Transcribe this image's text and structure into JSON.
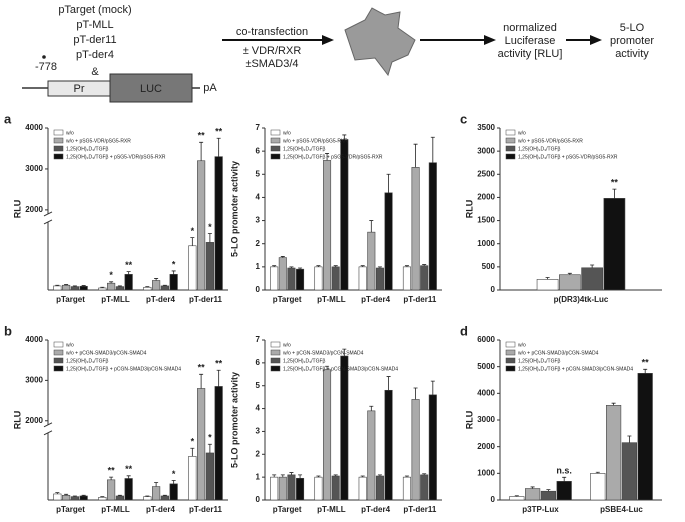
{
  "schematic": {
    "constructs": [
      "pTarget (mock)",
      "pT-MLL",
      "pT-der11",
      "pT-der4"
    ],
    "ampersand": "&",
    "position": "-778",
    "promoter": "Pr",
    "reporter": "LUC",
    "polya": "pA",
    "step1": [
      "co-transfection",
      "± VDR/RXR",
      "±SMAD3/4"
    ],
    "step2": [
      "normalized",
      "Luciferase",
      "activity [RLU]"
    ],
    "step3": [
      "5-LO",
      "promoter",
      "activity"
    ]
  },
  "chart_data": [
    {
      "type": "bar",
      "panel": "a",
      "ylabel": "RLU",
      "legend": "upper left",
      "categories": [
        "pTarget",
        "pT-MLL",
        "pT-der4",
        "pT-der11"
      ],
      "ylim": [
        0,
        4000
      ],
      "yticks": [
        2000,
        3000,
        4000
      ],
      "axis_break": [
        1000,
        1900
      ],
      "series": [
        {
          "name": "w/o",
          "color": "#ffffff",
          "values": [
            60,
            30,
            40,
            650
          ],
          "errors": [
            10,
            10,
            10,
            120
          ],
          "significance": [
            null,
            null,
            null,
            "*"
          ]
        },
        {
          "name": "w/o + pSG5-VDR/pSG5-RXR",
          "color": "#aaaaaa",
          "values": [
            70,
            100,
            140,
            3200
          ],
          "errors": [
            10,
            20,
            30,
            450
          ],
          "significance": [
            null,
            "*",
            null,
            "**"
          ]
        },
        {
          "name": "1,25(OH)₂D₃/TGFβ",
          "color": "#555555",
          "values": [
            50,
            50,
            60,
            700
          ],
          "errors": [
            10,
            10,
            10,
            130
          ],
          "significance": [
            null,
            null,
            null,
            "*"
          ]
        },
        {
          "name": "1,25(OH)₂D₃/TGFβ + pSG5-VDR/pSG5-RXR",
          "color": "#111111",
          "values": [
            55,
            230,
            230,
            3300
          ],
          "errors": [
            10,
            40,
            50,
            450
          ],
          "significance": [
            null,
            "**",
            "*",
            "**"
          ]
        }
      ]
    },
    {
      "type": "bar",
      "ylabel": "5-LO promoter activity",
      "legend": "upper left",
      "categories": [
        "pTarget",
        "pT-MLL",
        "pT-der4",
        "pT-der11"
      ],
      "ylim": [
        0,
        7
      ],
      "yticks": [
        0,
        1,
        2,
        3,
        4,
        5,
        6,
        7
      ],
      "series": [
        {
          "name": "w/o",
          "color": "#ffffff",
          "values": [
            1,
            1,
            1,
            1
          ],
          "errors": [
            0.05,
            0.05,
            0.05,
            0.05
          ],
          "significance": [
            null,
            null,
            null,
            null
          ]
        },
        {
          "name": "w/o + pSG5-VDR/pSG5-RXR",
          "color": "#aaaaaa",
          "values": [
            1.4,
            5.6,
            2.5,
            5.3
          ],
          "errors": [
            0.05,
            0.3,
            0.5,
            1.0
          ],
          "significance": [
            null,
            null,
            null,
            null
          ]
        },
        {
          "name": "1,25(OH)₂D₃/TGFβ",
          "color": "#555555",
          "values": [
            0.95,
            1.0,
            0.95,
            1.05
          ],
          "errors": [
            0.05,
            0.05,
            0.05,
            0.05
          ],
          "significance": [
            null,
            null,
            null,
            null
          ]
        },
        {
          "name": "1,25(OH)₂D₃/TGFβ + pSG5-VDR/pSG5-RXR",
          "color": "#111111",
          "values": [
            0.9,
            6.5,
            4.2,
            5.5
          ],
          "errors": [
            0.05,
            0.2,
            0.8,
            1.1
          ],
          "significance": [
            null,
            null,
            null,
            null
          ]
        }
      ]
    },
    {
      "type": "bar",
      "panel": "c",
      "ylabel": "RLU",
      "legend": "upper left",
      "categories": [
        "p(DR3)4tk-Luc"
      ],
      "ylim": [
        0,
        3500
      ],
      "yticks": [
        0,
        500,
        1000,
        1500,
        2000,
        2500,
        3000,
        3500
      ],
      "series": [
        {
          "name": "w/o",
          "color": "#ffffff",
          "values": [
            230
          ],
          "errors": [
            40
          ],
          "significance": [
            null
          ]
        },
        {
          "name": "w/o + pSG5-VDR/pSG5-RXR",
          "color": "#aaaaaa",
          "values": [
            330
          ],
          "errors": [
            30
          ],
          "significance": [
            null
          ]
        },
        {
          "name": "1,25(OH)₂D₃/TGFβ",
          "color": "#555555",
          "values": [
            480
          ],
          "errors": [
            60
          ],
          "significance": [
            null
          ]
        },
        {
          "name": "1,25(OH)₂D₃/TGFβ + pSG5-VDR/pSG5-RXR",
          "color": "#111111",
          "values": [
            1980
          ],
          "errors": [
            200
          ],
          "significance": [
            "**"
          ]
        }
      ]
    },
    {
      "type": "bar",
      "panel": "b",
      "ylabel": "RLU",
      "legend": "upper left",
      "categories": [
        "pTarget",
        "pT-MLL",
        "pT-der4",
        "pT-der11"
      ],
      "ylim": [
        0,
        4000
      ],
      "yticks": [
        2000,
        3000,
        4000
      ],
      "axis_break": [
        1000,
        1900
      ],
      "series": [
        {
          "name": "w/o",
          "color": "#ffffff",
          "values": [
            90,
            40,
            50,
            650
          ],
          "errors": [
            20,
            10,
            10,
            120
          ],
          "significance": [
            null,
            null,
            null,
            "*"
          ]
        },
        {
          "name": "w/o + pCGN-SMAD3/pCGN-SMAD4",
          "color": "#aaaaaa",
          "values": [
            70,
            300,
            200,
            2800
          ],
          "errors": [
            15,
            40,
            60,
            350
          ],
          "significance": [
            null,
            "**",
            null,
            "**"
          ]
        },
        {
          "name": "1,25(OH)₂D₃/TGFβ",
          "color": "#555555",
          "values": [
            50,
            60,
            60,
            700
          ],
          "errors": [
            10,
            10,
            10,
            130
          ],
          "significance": [
            null,
            null,
            null,
            "*"
          ]
        },
        {
          "name": "1,25(OH)₂D₃/TGFβ + pCGN-SMAD3/pCGN-SMAD4",
          "color": "#111111",
          "values": [
            60,
            320,
            240,
            2850
          ],
          "errors": [
            10,
            40,
            50,
            400
          ],
          "significance": [
            null,
            "**",
            "*",
            "**"
          ]
        }
      ]
    },
    {
      "type": "bar",
      "ylabel": "5-LO promoter activity",
      "legend": "upper left",
      "categories": [
        "pTarget",
        "pT-MLL",
        "pT-der4",
        "pT-der11"
      ],
      "ylim": [
        0,
        7
      ],
      "yticks": [
        0,
        1,
        2,
        3,
        4,
        5,
        6,
        7
      ],
      "series": [
        {
          "name": "w/o",
          "color": "#ffffff",
          "values": [
            1,
            1,
            1,
            1
          ],
          "errors": [
            0.1,
            0.05,
            0.05,
            0.05
          ],
          "significance": [
            null,
            null,
            null,
            null
          ]
        },
        {
          "name": "w/o + pCGN-SMAD3/pCGN-SMAD4",
          "color": "#aaaaaa",
          "values": [
            1.0,
            5.7,
            3.9,
            4.4
          ],
          "errors": [
            0.1,
            0.15,
            0.2,
            0.5
          ],
          "significance": [
            null,
            null,
            null,
            null
          ]
        },
        {
          "name": "1,25(OH)₂D₃/TGFβ",
          "color": "#555555",
          "values": [
            1.1,
            1.05,
            1.05,
            1.1
          ],
          "errors": [
            0.1,
            0.05,
            0.05,
            0.05
          ],
          "significance": [
            null,
            null,
            null,
            null
          ]
        },
        {
          "name": "1,25(OH)₂D₃/TGFβ + pCGN-SMAD3/pCGN-SMAD4",
          "color": "#111111",
          "values": [
            0.95,
            6.3,
            4.8,
            4.6
          ],
          "errors": [
            0.15,
            0.3,
            0.6,
            0.6
          ],
          "significance": [
            null,
            null,
            null,
            null
          ]
        }
      ]
    },
    {
      "type": "bar",
      "panel": "d",
      "ylabel": "RLU",
      "legend": "upper left",
      "categories": [
        "p3TP-Lux",
        "pSBE4-Luc"
      ],
      "ylim": [
        0,
        6000
      ],
      "yticks": [
        0,
        1000,
        2000,
        3000,
        4000,
        5000,
        6000
      ],
      "series": [
        {
          "name": "w/o",
          "color": "#ffffff",
          "values": [
            130,
            1000
          ],
          "errors": [
            30,
            40
          ],
          "significance": [
            null,
            null
          ]
        },
        {
          "name": "w/o + pCGN-SMAD3/pCGN-SMAD4",
          "color": "#aaaaaa",
          "values": [
            430,
            3550
          ],
          "errors": [
            60,
            80
          ],
          "significance": [
            null,
            null
          ]
        },
        {
          "name": "1,25(OH)₂D₃/TGFβ",
          "color": "#555555",
          "values": [
            330,
            2150
          ],
          "errors": [
            60,
            250
          ],
          "significance": [
            null,
            null
          ]
        },
        {
          "name": "1,25(OH)₂D₃/TGFβ + pCGN-SMAD3/pCGN-SMAD4",
          "color": "#111111",
          "values": [
            700,
            4750
          ],
          "errors": [
            150,
            150
          ],
          "significance": [
            "n.s.",
            "**"
          ]
        }
      ]
    }
  ]
}
